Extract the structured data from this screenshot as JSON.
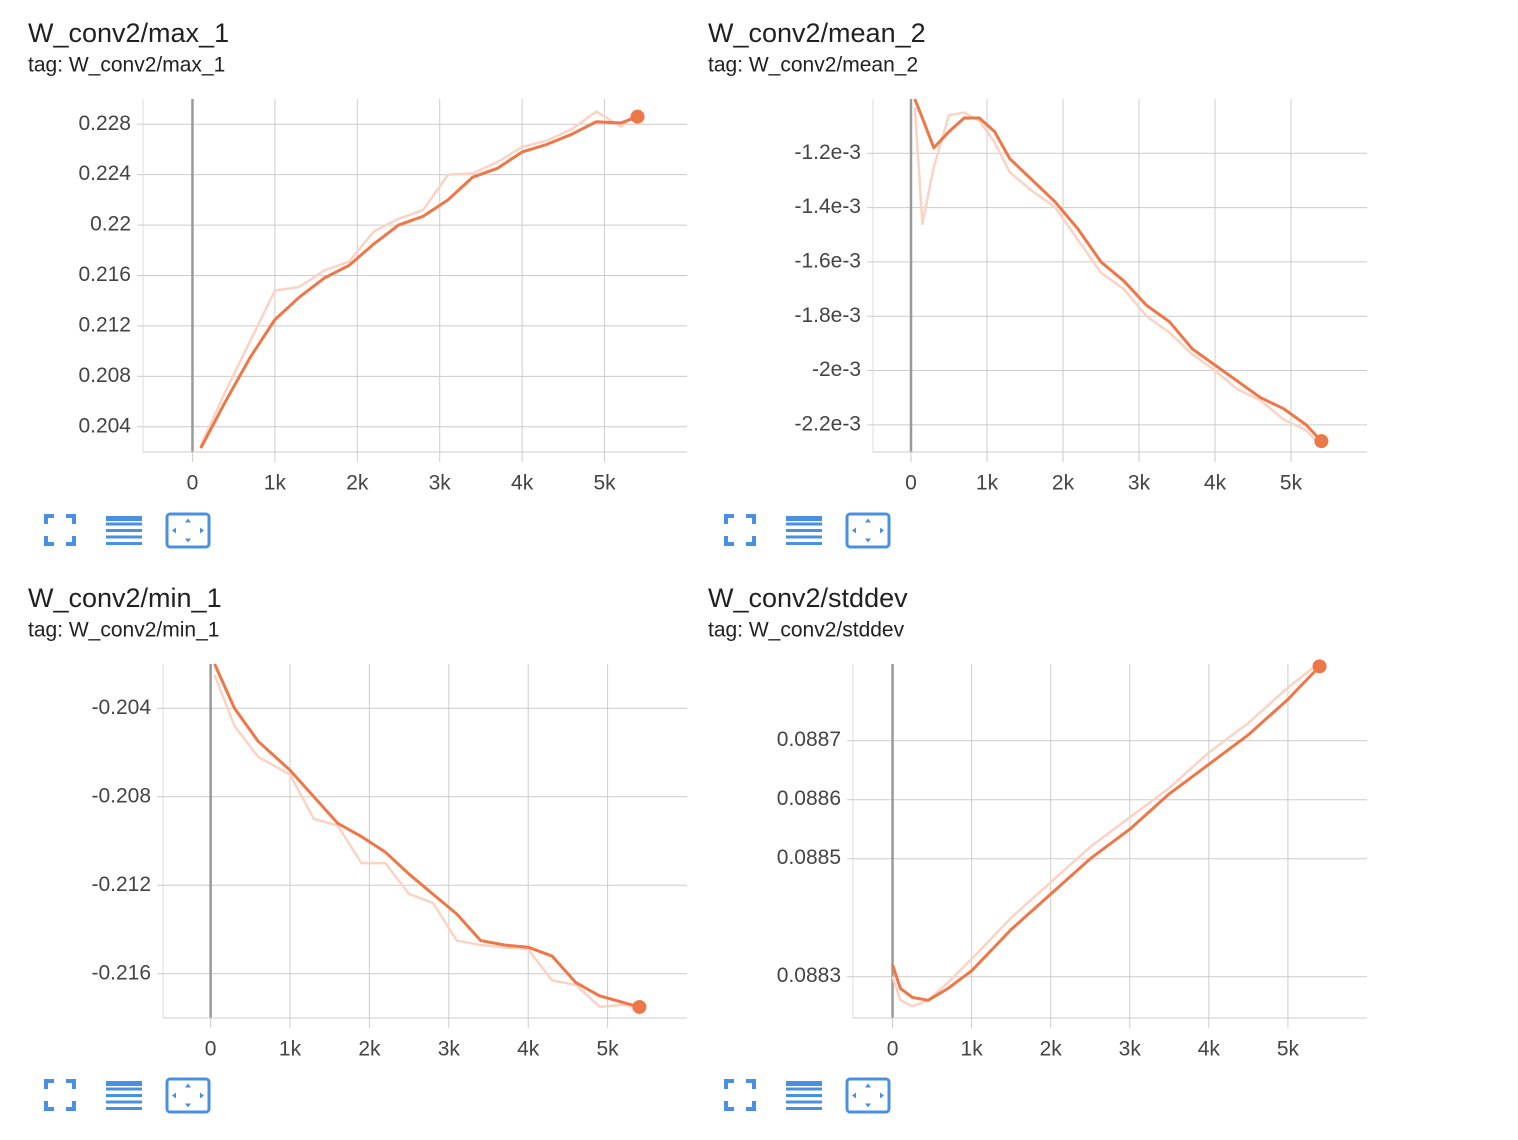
{
  "chart_data": [
    {
      "type": "line",
      "title": "W_conv2/max_1",
      "subtitle": "tag: W_conv2/max_1",
      "x": [
        100,
        400,
        700,
        1000,
        1300,
        1600,
        1900,
        2200,
        2500,
        2800,
        3100,
        3400,
        3700,
        4000,
        4300,
        4600,
        4900,
        5200,
        5400
      ],
      "series": [
        {
          "color": "#fbd3c4",
          "values": [
            0.2025,
            0.2068,
            0.2108,
            0.2148,
            0.2151,
            0.2164,
            0.2171,
            0.2195,
            0.2205,
            0.2212,
            0.224,
            0.2241,
            0.225,
            0.2262,
            0.2267,
            0.2276,
            0.229,
            0.2278,
            0.229
          ]
        },
        {
          "color": "#ee7748",
          "values": [
            0.2023,
            0.206,
            0.2095,
            0.2125,
            0.2143,
            0.2158,
            0.2168,
            0.2185,
            0.22,
            0.2207,
            0.222,
            0.2238,
            0.2245,
            0.2258,
            0.2264,
            0.2272,
            0.2282,
            0.2281,
            0.2286
          ]
        }
      ],
      "xlim": [
        -600,
        6000
      ],
      "ylim": [
        0.202,
        0.23
      ],
      "xticks": [
        0,
        {
          "value": 1000,
          "label": "1k"
        },
        {
          "value": 2000,
          "label": "2k"
        },
        {
          "value": 3000,
          "label": "3k"
        },
        {
          "value": 4000,
          "label": "4k"
        },
        {
          "value": 5000,
          "label": "5k"
        }
      ],
      "yticks": [
        0.204,
        0.208,
        0.212,
        0.216,
        0.22,
        0.224,
        0.228
      ],
      "grid": true
    },
    {
      "type": "line",
      "title": "W_conv2/mean_2",
      "subtitle": "tag: W_conv2/mean_2",
      "x": [
        50,
        150,
        300,
        500,
        700,
        900,
        1100,
        1300,
        1600,
        1900,
        2200,
        2500,
        2800,
        3100,
        3400,
        3700,
        4000,
        4300,
        4600,
        4900,
        5200,
        5400
      ],
      "series": [
        {
          "color": "#fbd3c4",
          "values": [
            -0.00103,
            -0.00146,
            -0.00125,
            -0.00106,
            -0.00105,
            -0.00108,
            -0.00116,
            -0.00127,
            -0.00134,
            -0.0014,
            -0.00152,
            -0.00164,
            -0.0017,
            -0.0018,
            -0.00186,
            -0.00194,
            -0.002,
            -0.00207,
            -0.00211,
            -0.00218,
            -0.00222,
            -0.00228
          ]
        },
        {
          "color": "#ee7748",
          "values": [
            -0.001,
            -0.00107,
            -0.00118,
            -0.00112,
            -0.00107,
            -0.00107,
            -0.00112,
            -0.00122,
            -0.0013,
            -0.00138,
            -0.00148,
            -0.0016,
            -0.00167,
            -0.00176,
            -0.00182,
            -0.00192,
            -0.00198,
            -0.00204,
            -0.0021,
            -0.00214,
            -0.0022,
            -0.00226
          ]
        }
      ],
      "xlim": [
        -500,
        6000
      ],
      "ylim": [
        -0.0023,
        -0.001
      ],
      "xticks": [
        0,
        {
          "value": 1000,
          "label": "1k"
        },
        {
          "value": 2000,
          "label": "2k"
        },
        {
          "value": 3000,
          "label": "3k"
        },
        {
          "value": 4000,
          "label": "4k"
        },
        {
          "value": 5000,
          "label": "5k"
        }
      ],
      "yticks": [
        {
          "value": -0.0022,
          "label": "-2.2e-3"
        },
        {
          "value": -0.002,
          "label": "-2e-3"
        },
        {
          "value": -0.0018,
          "label": "-1.8e-3"
        },
        {
          "value": -0.0016,
          "label": "-1.6e-3"
        },
        {
          "value": -0.0014,
          "label": "-1.4e-3"
        },
        {
          "value": -0.0012,
          "label": "-1.2e-3"
        }
      ],
      "grid": true
    },
    {
      "type": "line",
      "title": "W_conv2/min_1",
      "subtitle": "tag: W_conv2/min_1",
      "x": [
        50,
        300,
        600,
        1000,
        1300,
        1600,
        1900,
        2200,
        2500,
        2800,
        3100,
        3400,
        3700,
        4000,
        4300,
        4600,
        4900,
        5200,
        5400
      ],
      "series": [
        {
          "color": "#fbd3c4",
          "values": [
            -0.2025,
            -0.2048,
            -0.2062,
            -0.207,
            -0.209,
            -0.2093,
            -0.211,
            -0.211,
            -0.2124,
            -0.2128,
            -0.2145,
            -0.2147,
            -0.2148,
            -0.2149,
            -0.2163,
            -0.2165,
            -0.2175,
            -0.2174,
            -0.2176
          ]
        },
        {
          "color": "#ee7748",
          "values": [
            -0.202,
            -0.204,
            -0.2055,
            -0.2068,
            -0.208,
            -0.2092,
            -0.2098,
            -0.2105,
            -0.2115,
            -0.2124,
            -0.2133,
            -0.2145,
            -0.2147,
            -0.2148,
            -0.2152,
            -0.2164,
            -0.217,
            -0.2173,
            -0.2175
          ]
        }
      ],
      "xlim": [
        -600,
        6000
      ],
      "ylim": [
        -0.218,
        -0.202
      ],
      "xticks": [
        0,
        {
          "value": 1000,
          "label": "1k"
        },
        {
          "value": 2000,
          "label": "2k"
        },
        {
          "value": 3000,
          "label": "3k"
        },
        {
          "value": 4000,
          "label": "4k"
        },
        {
          "value": 5000,
          "label": "5k"
        }
      ],
      "yticks": [
        -0.216,
        -0.212,
        -0.208,
        -0.204
      ],
      "grid": true
    },
    {
      "type": "line",
      "title": "W_conv2/stddev",
      "subtitle": "tag: W_conv2/stddev",
      "x": [
        0,
        100,
        250,
        450,
        700,
        1000,
        1500,
        2000,
        2500,
        3000,
        3500,
        4000,
        4500,
        5000,
        5400
      ],
      "series": [
        {
          "color": "#fbd3c4",
          "values": [
            0.0883,
            0.08826,
            0.08825,
            0.08826,
            0.08829,
            0.08833,
            0.0884,
            0.08846,
            0.08852,
            0.08857,
            0.08862,
            0.08868,
            0.08873,
            0.08879,
            0.088832
          ]
        },
        {
          "color": "#ee7748",
          "values": [
            0.08832,
            0.08828,
            0.088265,
            0.08826,
            0.08828,
            0.08831,
            0.08838,
            0.08844,
            0.0885,
            0.08855,
            0.08861,
            0.08866,
            0.08871,
            0.08877,
            0.088826
          ]
        }
      ],
      "xlim": [
        -500,
        6000
      ],
      "ylim": [
        0.08823,
        0.08883
      ],
      "xticks": [
        0,
        {
          "value": 1000,
          "label": "1k"
        },
        {
          "value": 2000,
          "label": "2k"
        },
        {
          "value": 3000,
          "label": "3k"
        },
        {
          "value": 4000,
          "label": "4k"
        },
        {
          "value": 5000,
          "label": "5k"
        }
      ],
      "yticks": [
        0.0883,
        0.0885,
        0.0886,
        0.0887
      ],
      "grid": true
    }
  ]
}
